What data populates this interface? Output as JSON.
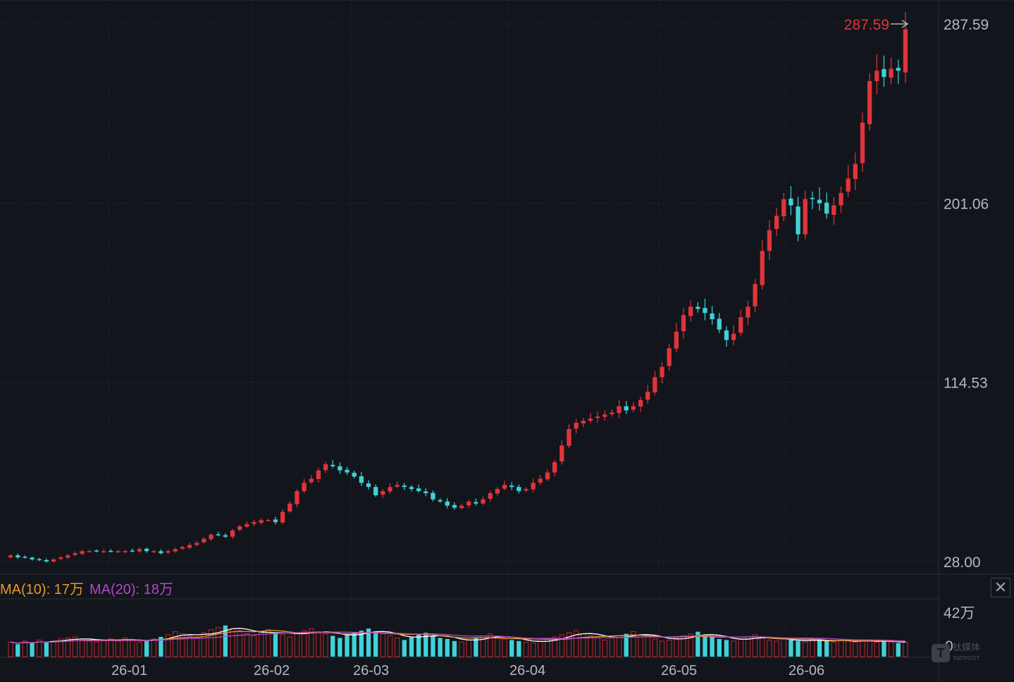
{
  "chart_data": {
    "type": "candlestick",
    "ohlc_note": "",
    "y_ticks": [
      "287.59",
      "201.06",
      "114.53",
      "28.00"
    ],
    "ylim": [
      28.0,
      287.59
    ],
    "x_ticks": [
      "26-01",
      "26-02",
      "26-03",
      "26-04",
      "26-05",
      "26-06"
    ],
    "highest_label": "287.59",
    "closes": [
      31,
      30,
      30,
      29,
      29,
      28,
      29,
      30,
      31,
      32,
      33,
      33,
      33,
      33,
      33,
      33,
      33,
      33,
      34,
      33,
      33,
      32,
      33,
      34,
      35,
      36,
      37,
      39,
      41,
      41,
      40,
      43,
      45,
      46,
      47,
      48,
      48,
      47,
      52,
      56,
      62,
      66,
      68,
      72,
      75,
      74,
      72,
      71,
      69,
      66,
      64,
      60,
      62,
      64,
      65,
      64,
      63,
      62,
      61,
      58,
      57,
      55,
      54,
      55,
      57,
      56,
      58,
      61,
      63,
      65,
      64,
      62,
      63,
      66,
      68,
      71,
      76,
      84,
      92,
      95,
      96,
      97,
      98,
      99,
      100,
      103,
      101,
      103,
      106,
      110,
      117,
      122,
      131,
      139,
      147,
      151,
      150,
      148,
      145,
      140,
      135,
      138,
      146,
      151,
      162,
      178,
      188,
      195,
      203,
      200,
      186,
      203,
      203,
      201,
      196,
      200,
      206,
      213,
      220,
      240,
      260,
      265,
      262,
      266,
      265,
      285
    ],
    "volume": {
      "labels": [
        "MA(10): 17万",
        "MA(20): 18万"
      ],
      "y_ticks": [
        "42万",
        "0"
      ],
      "values": [
        14,
        12,
        15,
        13,
        16,
        14,
        15,
        17,
        18,
        19,
        16,
        15,
        14,
        16,
        17,
        15,
        18,
        16,
        14,
        15,
        17,
        19,
        21,
        24,
        22,
        20,
        18,
        23,
        26,
        28,
        30,
        27,
        25,
        22,
        20,
        24,
        26,
        23,
        21,
        19,
        22,
        25,
        27,
        24,
        22,
        20,
        18,
        21,
        23,
        25,
        27,
        24,
        22,
        20,
        18,
        16,
        19,
        21,
        23,
        20,
        18,
        17,
        15,
        14,
        16,
        18,
        20,
        22,
        19,
        17,
        16,
        15,
        14,
        13,
        15,
        17,
        19,
        21,
        23,
        25,
        22,
        20,
        18,
        16,
        18,
        20,
        22,
        24,
        21,
        19,
        17,
        15,
        16,
        18,
        20,
        22,
        24,
        21,
        19,
        17,
        16,
        15,
        17,
        19,
        21,
        18,
        16,
        15,
        17,
        16,
        15,
        14,
        16,
        17,
        15,
        14,
        16,
        15,
        14,
        16,
        15,
        14,
        15,
        14,
        13,
        14
      ]
    }
  },
  "ui": {
    "close_glyph": "✕",
    "watermark_glyph": "T",
    "watermark_line1": "钛媒体",
    "watermark_line2": "TMTPOST"
  }
}
